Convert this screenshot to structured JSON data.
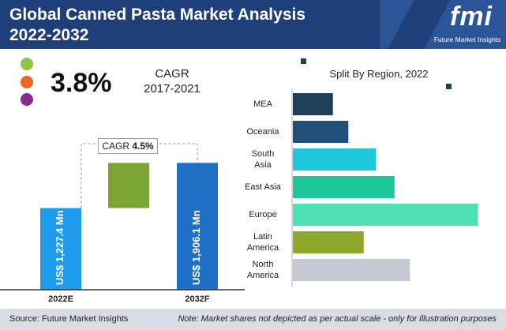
{
  "header": {
    "title_line1": "Global Canned Pasta Market Analysis",
    "title_line2": "2022-2032",
    "logo_text": "fmi",
    "logo_sub": "Future Market Insights"
  },
  "legend_dots": {
    "colors": [
      "#8dc63f",
      "#f26522",
      "#8b2a8e"
    ]
  },
  "cagr_summary": {
    "value": "3.8%",
    "label_line1": "CAGR",
    "label_line2": "2017-2021"
  },
  "chart_data": [
    {
      "type": "bar",
      "categories": [
        "2022E",
        "2032F"
      ],
      "values": [
        1227.4,
        1906.1
      ],
      "value_labels": [
        "US$ 1,227.4 Mn",
        "US$ 1,906.1 Mn"
      ],
      "increment": [
        1227.4,
        1906.1
      ],
      "cagr_label": "CAGR",
      "cagr_value": "4.5%",
      "title": "",
      "xlabel": "",
      "ylabel": "",
      "ylim": [
        0,
        2100
      ],
      "colors": {
        "bar": "#1e9bea",
        "bar_end": "#1f6fc6",
        "increment": "#7ba534"
      }
    },
    {
      "type": "bar",
      "orientation": "horizontal",
      "title": "Split By Region, 2022",
      "categories": [
        [
          "MEA"
        ],
        [
          "Oceania"
        ],
        [
          "South",
          "Asia"
        ],
        [
          "East Asia"
        ],
        [
          "Europe"
        ],
        [
          "Latin",
          "America"
        ],
        [
          "North",
          "America"
        ]
      ],
      "values": [
        13,
        18,
        27,
        33,
        60,
        23,
        38
      ],
      "colors": [
        "#1f3f5a",
        "#1f4f7a",
        "#1ec8dc",
        "#1ec79a",
        "#4de0b4",
        "#8ea82c",
        "#c5c9d2"
      ],
      "xlim": [
        0,
        62
      ]
    }
  ],
  "footer": {
    "source": "Source: Future Market Insights",
    "note": "Note: Market shares not depicted as per actual scale - only for illustration purposes"
  }
}
